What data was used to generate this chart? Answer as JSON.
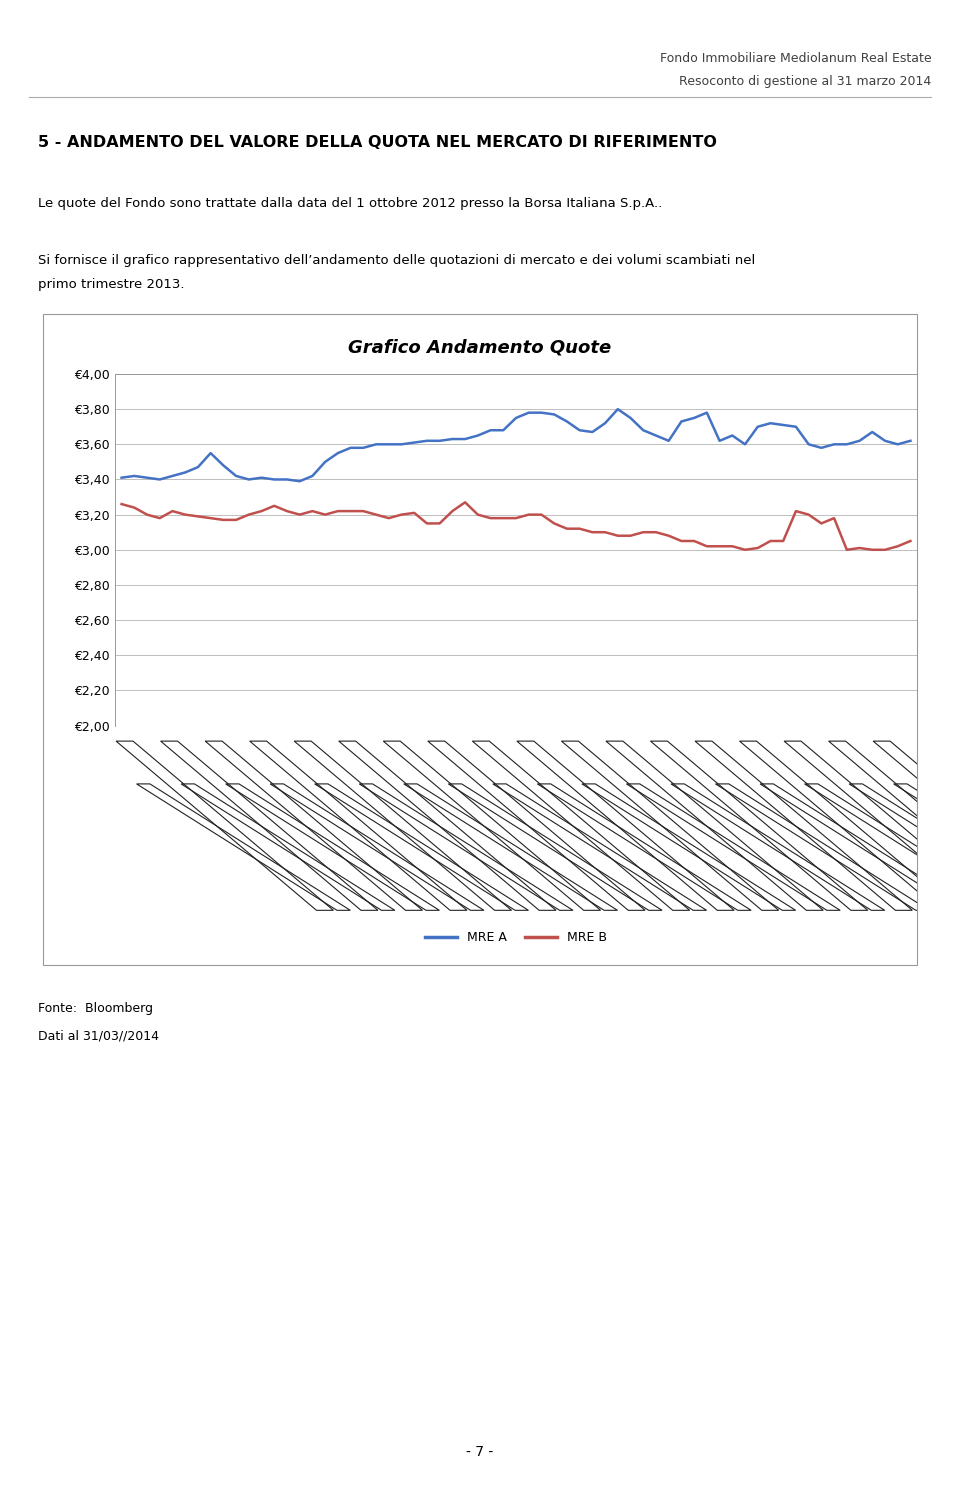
{
  "title": "Grafico Andamento Quote",
  "header_right_line1": "Fondo Immobiliare Mediolanum Real Estate",
  "header_right_line2": "Resoconto di gestione al 31 marzo 2014",
  "section_title": "5 - ANDAMENTO DEL VALORE DELLA QUOTA NEL MERCATO DI RIFERIMENTO",
  "paragraph1": "Le quote del Fondo sono trattate dalla data del 1 ottobre 2012 presso la Borsa Italiana S.p.A..",
  "paragraph2_line1": "Si fornisce il grafico rappresentativo dell’andamento delle quotazioni di mercato e dei volumi scambiati nel",
  "paragraph2_line2": "primo trimestre 2013.",
  "footer_line1": "Fonte:  Bloomberg",
  "footer_line2": "Dati al 31/03//2014",
  "page_number": "- 7 -",
  "ylim": [
    2.0,
    4.0
  ],
  "yticks": [
    2.0,
    2.2,
    2.4,
    2.6,
    2.8,
    3.0,
    3.2,
    3.4,
    3.6,
    3.8,
    4.0
  ],
  "mre_a_color": "#4472C4",
  "mre_b_color": "#C0504D",
  "background_color": "#FFFFFF",
  "chart_bg": "#FFFFFF",
  "grid_color": "#BFBFBF",
  "legend_line_color": "#4472C4",
  "legend_line_color_b": "#C0504D",
  "mre_a": [
    3.41,
    3.42,
    3.41,
    3.4,
    3.42,
    3.44,
    3.47,
    3.55,
    3.48,
    3.42,
    3.4,
    3.41,
    3.4,
    3.4,
    3.39,
    3.42,
    3.5,
    3.55,
    3.58,
    3.58,
    3.6,
    3.6,
    3.6,
    3.61,
    3.62,
    3.62,
    3.63,
    3.63,
    3.65,
    3.68,
    3.68,
    3.75,
    3.78,
    3.78,
    3.77,
    3.73,
    3.68,
    3.67,
    3.72,
    3.8,
    3.75,
    3.68,
    3.65,
    3.62,
    3.73,
    3.75,
    3.78,
    3.62,
    3.65,
    3.6,
    3.7,
    3.72,
    3.71,
    3.7,
    3.6,
    3.58,
    3.6,
    3.6,
    3.62,
    3.67,
    3.62,
    3.6,
    3.62
  ],
  "mre_b": [
    3.26,
    3.24,
    3.2,
    3.18,
    3.22,
    3.2,
    3.19,
    3.18,
    3.17,
    3.17,
    3.2,
    3.22,
    3.25,
    3.22,
    3.2,
    3.22,
    3.2,
    3.22,
    3.22,
    3.22,
    3.2,
    3.18,
    3.2,
    3.21,
    3.15,
    3.15,
    3.22,
    3.27,
    3.2,
    3.18,
    3.18,
    3.18,
    3.2,
    3.2,
    3.15,
    3.12,
    3.12,
    3.1,
    3.1,
    3.08,
    3.08,
    3.1,
    3.1,
    3.08,
    3.05,
    3.05,
    3.02,
    3.02,
    3.02,
    3.0,
    3.01,
    3.05,
    3.05,
    3.22,
    3.2,
    3.15,
    3.18,
    3.0,
    3.01,
    3.0,
    3.0,
    3.02,
    3.05
  ]
}
